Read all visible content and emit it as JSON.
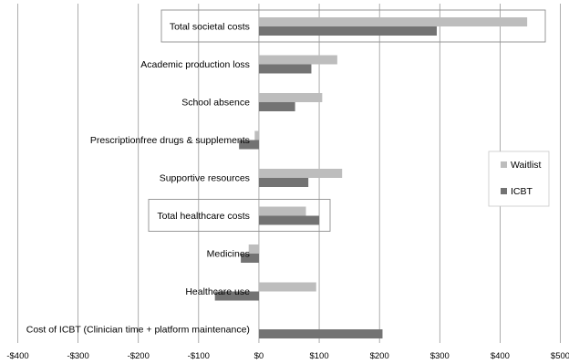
{
  "chart_data": {
    "type": "bar",
    "orientation": "horizontal",
    "categories": [
      "Total societal costs",
      "Academic  production loss",
      "School absence",
      "Prescriptionfree drugs & supplements",
      "Supportive resources",
      "Total healthcare costs",
      "Medicines",
      "Healthcare use",
      "Cost of ICBT (Clinician time + platform maintenance)"
    ],
    "highlighted_categories": [
      "Total societal costs",
      "Total healthcare costs"
    ],
    "series": [
      {
        "name": "Waitlist",
        "color": "#bdbdbd",
        "values": [
          445,
          130,
          105,
          -7,
          138,
          78,
          -17,
          95,
          0
        ]
      },
      {
        "name": "ICBT",
        "color": "#737373",
        "values": [
          295,
          87,
          60,
          -33,
          82,
          100,
          -30,
          -73,
          205
        ]
      }
    ],
    "xlim": [
      -400,
      500
    ],
    "xticks": [
      "-$400",
      "-$300",
      "-$200",
      "-$100",
      "$0",
      "$100",
      "$200",
      "$300",
      "$400",
      "$500"
    ],
    "xtick_values": [
      -400,
      -300,
      -200,
      -100,
      0,
      100,
      200,
      300,
      400,
      500
    ],
    "grid": true,
    "legend_position": "right"
  }
}
